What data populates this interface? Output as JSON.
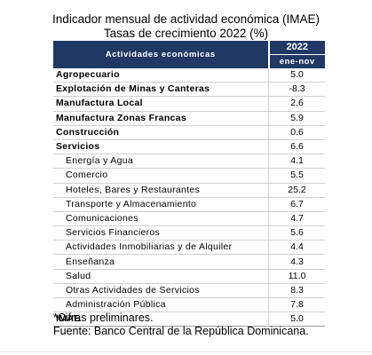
{
  "title": {
    "line1": "Indicador mensual de actividad económica (IMAE)",
    "line2": "Tasas de crecimiento 2022 (%)"
  },
  "table": {
    "header_activity": "Actividades económicas",
    "header_year": "2022",
    "header_period": "ene-nov",
    "rows": [
      {
        "label": "Agropecuario",
        "value": "5.0",
        "style": "bold"
      },
      {
        "label": "Explotación de Minas y Canteras",
        "value": "-8.3",
        "style": "bold"
      },
      {
        "label": "Manufactura Local",
        "value": "2.6",
        "style": "bold"
      },
      {
        "label": "Manufactura Zonas Francas",
        "value": "5.9",
        "style": "bold"
      },
      {
        "label": "Construcción",
        "value": "0.6",
        "style": "bold"
      },
      {
        "label": "Servicios",
        "value": "6.6",
        "style": "bold"
      },
      {
        "label": "Energía y Agua",
        "value": "4.1",
        "style": "indent"
      },
      {
        "label": "Comercio",
        "value": "5.5",
        "style": "indent"
      },
      {
        "label": "Hoteles, Bares y Restaurantes",
        "value": "25.2",
        "style": "indent"
      },
      {
        "label": "Transporte y Almacenamiento",
        "value": "6.7",
        "style": "indent"
      },
      {
        "label": "Comunicaciones",
        "value": "4.7",
        "style": "indent"
      },
      {
        "label": "Servicios Financieros",
        "value": "5.6",
        "style": "indent"
      },
      {
        "label": "Actividades Inmobiliarias y de Alquiler",
        "value": "4.4",
        "style": "indent"
      },
      {
        "label": "Enseñanza",
        "value": "4.3",
        "style": "indent"
      },
      {
        "label": "Salud",
        "value": "11.0",
        "style": "indent"
      },
      {
        "label": "Otras Actividades de Servicios",
        "value": "8.3",
        "style": "indent"
      },
      {
        "label": "Administración Pública",
        "value": "7.8",
        "style": "indent"
      },
      {
        "label": "IMAE",
        "value": "5.0",
        "style": "bold"
      }
    ]
  },
  "notes": {
    "line1": "*Cifras preliminares.",
    "line2": "Fuente: Banco Central de la República Dominicana."
  },
  "colors": {
    "header_background": "#1f3864",
    "header_text": "#ffffff"
  }
}
